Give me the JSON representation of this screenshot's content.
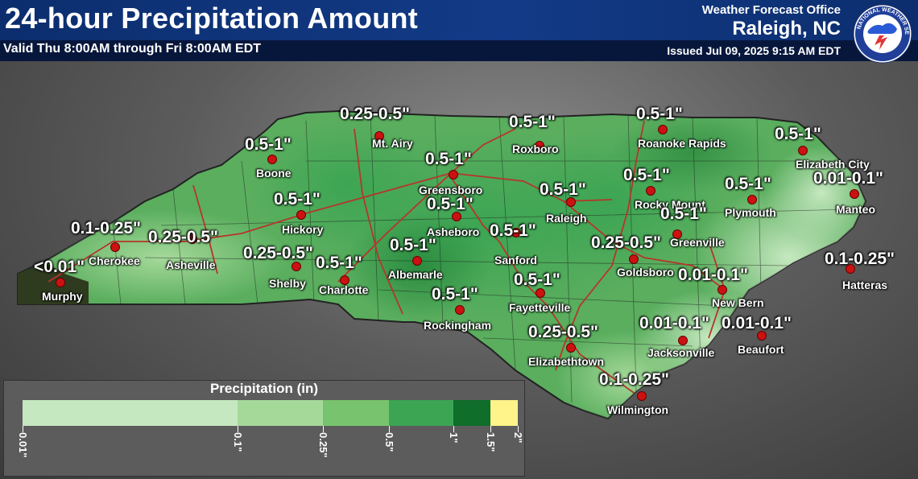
{
  "header": {
    "title": "24-hour Precipitation Amount",
    "subtitle": "Valid Thu 8:00AM through Fri 8:00AM EDT",
    "wfo_label": "Weather Forecast Office",
    "office": "Raleigh, NC",
    "issued": "Issued Jul 09, 2025 9:15 AM EDT",
    "logo_text": "NATIONAL WEATHER SERVICE"
  },
  "cities": [
    {
      "name": "Murphy",
      "amount": "<0.01\""
    },
    {
      "name": "Cherokee",
      "amount": "0.1-0.25\""
    },
    {
      "name": "Asheville",
      "amount": "0.25-0.5\""
    },
    {
      "name": "Boone",
      "amount": "0.5-1\""
    },
    {
      "name": "Hickory",
      "amount": "0.5-1\""
    },
    {
      "name": "Shelby",
      "amount": "0.25-0.5\""
    },
    {
      "name": "Charlotte",
      "amount": "0.5-1\""
    },
    {
      "name": "Mt. Airy",
      "amount": "0.25-0.5\""
    },
    {
      "name": "Greensboro",
      "amount": "0.5-1\""
    },
    {
      "name": "Asheboro",
      "amount": "0.5-1\""
    },
    {
      "name": "Albemarle",
      "amount": "0.5-1\""
    },
    {
      "name": "Rockingham",
      "amount": "0.5-1\""
    },
    {
      "name": "Roxboro",
      "amount": "0.5-1\""
    },
    {
      "name": "Raleigh",
      "amount": "0.5-1\""
    },
    {
      "name": "Sanford",
      "amount": "0.5-1\""
    },
    {
      "name": "Fayetteville",
      "amount": "0.5-1\""
    },
    {
      "name": "Elizabethtown",
      "amount": "0.25-0.5\""
    },
    {
      "name": "Roanoke Rapids",
      "amount": "0.5-1\""
    },
    {
      "name": "Rocky Mount",
      "amount": "0.5-1\""
    },
    {
      "name": "Goldsboro",
      "amount": "0.25-0.5\""
    },
    {
      "name": "Greenville",
      "amount": "0.5-1\""
    },
    {
      "name": "Plymouth",
      "amount": "0.5-1\""
    },
    {
      "name": "Elizabeth City",
      "amount": "0.5-1\""
    },
    {
      "name": "Manteo",
      "amount": "0.01-0.1\""
    },
    {
      "name": "Hatteras",
      "amount": "0.1-0.25\""
    },
    {
      "name": "New Bern",
      "amount": "0.01-0.1\""
    },
    {
      "name": "Jacksonville",
      "amount": "0.01-0.1\""
    },
    {
      "name": "Beaufort",
      "amount": "0.01-0.1\""
    },
    {
      "name": "Wilmington",
      "amount": "0.1-0.25\""
    }
  ],
  "legend": {
    "title": "Precipitation (in)",
    "bins": [
      {
        "from": 0.01,
        "to": 0.1,
        "color": "#c6e8c0"
      },
      {
        "from": 0.1,
        "to": 0.25,
        "color": "#a5d99a"
      },
      {
        "from": 0.25,
        "to": 0.5,
        "color": "#78c46e"
      },
      {
        "from": 0.5,
        "to": 1,
        "color": "#3ca554"
      },
      {
        "from": 1,
        "to": 1.5,
        "color": "#0f6e2a"
      },
      {
        "from": 1.5,
        "to": 2,
        "color": "#fff48a"
      }
    ],
    "ticks": [
      "0.01\"",
      "0.1\"",
      "0.25\"",
      "0.5\"",
      "1\"",
      "1.5\"",
      "2\""
    ]
  },
  "colors": {
    "header_bg": "#123a86",
    "road": "#c0392b",
    "city_dot": "#cc1111",
    "dry_area": "#2f3b1f"
  }
}
